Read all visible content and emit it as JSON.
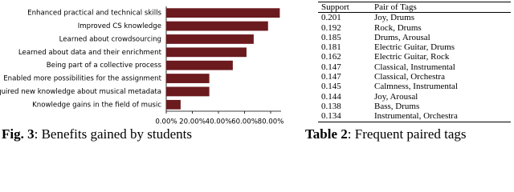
{
  "chart_data": {
    "type": "barh",
    "categories": [
      "Enhanced practical and technical skills",
      "Improved CS knowledge",
      "Learned about crowdsourcing",
      "Learned about data and their enrichment",
      "Being part of a collective process",
      "Enabled more possibilities for the assignment",
      "Acquired new knowledge about musical metadata",
      "Knowledge gains in the field of music"
    ],
    "values": [
      87,
      78,
      67,
      61.5,
      51,
      33,
      33,
      11
    ],
    "color": "#6b1a1e",
    "xlim": [
      0,
      88
    ],
    "xticks": [
      {
        "value": 0,
        "label": "0.00%"
      },
      {
        "value": 20,
        "label": "20.00%"
      },
      {
        "value": 40,
        "label": "40.00%"
      },
      {
        "value": 60,
        "label": "60.00%"
      },
      {
        "value": 80,
        "label": "80.00%"
      }
    ]
  },
  "figure_caption": {
    "label": "Fig. 3",
    "text": ": Benefits gained by students"
  },
  "table": {
    "header": [
      "Support",
      "Pair of Tags"
    ],
    "rows": [
      [
        "0.201",
        "Joy, Drums"
      ],
      [
        "0.192",
        "Rock, Drums"
      ],
      [
        "0.185",
        "Drums, Arousal"
      ],
      [
        "0.181",
        "Electric Guitar, Drums"
      ],
      [
        "0.162",
        "Electric Guitar, Rock"
      ],
      [
        "0.147",
        "Classical, Instrumental"
      ],
      [
        "0.147",
        "Classical, Orchestra"
      ],
      [
        "0.145",
        "Calmness, Instrumental"
      ],
      [
        "0.144",
        "Joy, Arousal"
      ],
      [
        "0.138",
        "Bass, Drums"
      ],
      [
        "0.134",
        "Instrumental, Orchestra"
      ]
    ],
    "caption": {
      "label": "Table 2",
      "text": ": Frequent paired tags"
    }
  }
}
